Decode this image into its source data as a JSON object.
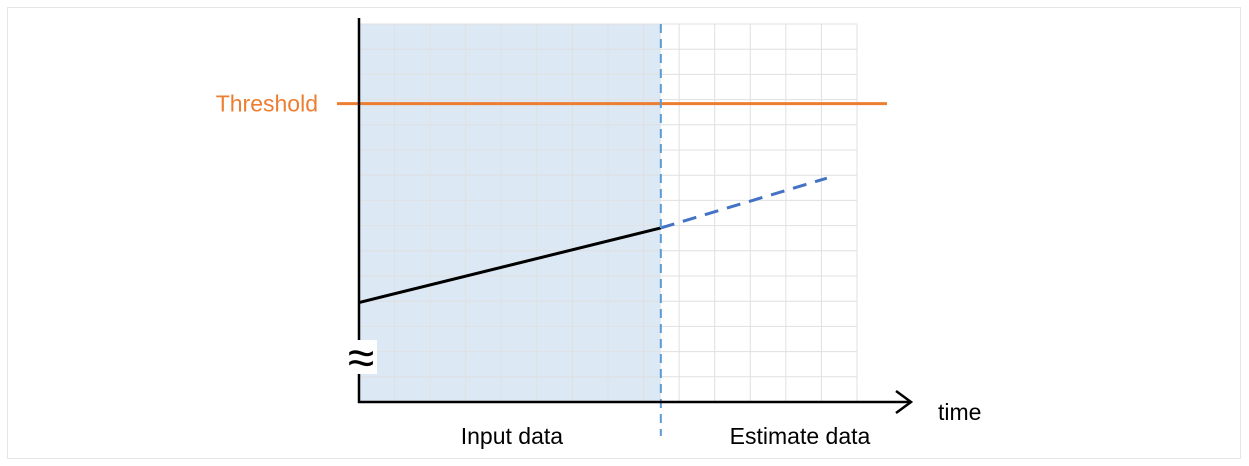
{
  "chart_data": {
    "type": "line",
    "labels": {
      "threshold": "Threshold",
      "x_axis": "time",
      "input_region": "Input data",
      "estimate_region": "Estimate data"
    },
    "axis_break_symbol": "≈",
    "colors": {
      "threshold": "#ed7d31",
      "input_line": "#000000",
      "estimate_line": "#4472c4",
      "input_region_fill": "#dce9f5",
      "divider": "#5b9bd5",
      "grid": "#e0e0e0",
      "axis": "#000000"
    },
    "series": [
      {
        "values": [
          [
            0,
            20
          ],
          [
            100,
            35
          ]
        ]
      },
      {
        "values": [
          [
            100,
            35
          ],
          [
            155,
            45
          ]
        ]
      }
    ],
    "threshold_value": 60,
    "boundary_x": 100,
    "xlim": [
      0,
      165
    ],
    "ylim": [
      0,
      76
    ],
    "grid": true
  }
}
